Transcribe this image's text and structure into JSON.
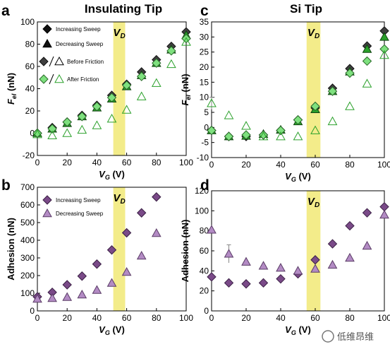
{
  "figure": {
    "titles": {
      "left": "Insulating Tip",
      "right": "Si Tip"
    },
    "watermark": "低维昂维",
    "colors": {
      "green_dark": "#2aa02a",
      "green_light": "#7ee07e",
      "diamond_dark": "#3f3f3f",
      "purple": "#7a4a88",
      "lavender": "#b38bc4",
      "vd_band": "#f3ec8a"
    }
  },
  "chart_data": [
    {
      "panel": "a",
      "type": "scatter",
      "xlabel": "V_G (V)",
      "ylabel": "F_el (nN)",
      "xlim": [
        0,
        100
      ],
      "ylim": [
        -20,
        100
      ],
      "xticks": [
        0,
        20,
        40,
        60,
        80,
        100
      ],
      "yticks": [
        -20,
        0,
        20,
        40,
        60,
        80,
        100
      ],
      "band": {
        "label": "V_D",
        "x0": 51,
        "x1": 59
      },
      "legend": [
        "Increasing Sweep",
        "Decreasing Sweep",
        "Before Friction",
        "After Friction"
      ],
      "series": [
        {
          "name": "Before Friction",
          "marker": "diamond",
          "style": "before",
          "x": [
            0,
            10,
            20,
            30,
            40,
            50,
            60,
            70,
            80,
            90,
            100
          ],
          "y": [
            0,
            5,
            10,
            16,
            25,
            34,
            44,
            55,
            66,
            78,
            91
          ]
        },
        {
          "name": "Before Friction",
          "marker": "triangle",
          "style": "before",
          "x": [
            0,
            10,
            20,
            30,
            40,
            50,
            60,
            70,
            80,
            90,
            100
          ],
          "y": [
            0,
            4,
            9,
            15,
            23,
            31,
            42,
            52,
            63,
            75,
            88
          ]
        },
        {
          "name": "After Friction",
          "marker": "diamond",
          "style": "after",
          "x": [
            0,
            10,
            20,
            30,
            40,
            50,
            60,
            70,
            80,
            90,
            100
          ],
          "y": [
            0,
            4,
            10,
            15,
            24,
            32,
            43,
            51,
            63,
            74,
            85
          ]
        },
        {
          "name": "After Friction",
          "marker": "triangle",
          "style": "after",
          "x": [
            0,
            10,
            20,
            30,
            40,
            50,
            60,
            70,
            80,
            90,
            100
          ],
          "y": [
            -1,
            -2,
            0,
            3,
            7,
            13,
            21,
            33,
            45,
            62,
            82
          ]
        }
      ]
    },
    {
      "panel": "b",
      "type": "scatter",
      "xlabel": "V_G (V)",
      "ylabel": "Adhesion (nN)",
      "xlim": [
        0,
        100
      ],
      "ylim": [
        0,
        700
      ],
      "xticks": [
        0,
        20,
        40,
        60,
        80,
        100
      ],
      "yticks": [
        0,
        100,
        200,
        300,
        400,
        500,
        600,
        700
      ],
      "band": {
        "label": "V_D",
        "x0": 51,
        "x1": 59
      },
      "legend": [
        "Increasing Sweep",
        "Decreasing Sweep"
      ],
      "series": [
        {
          "name": "Increasing Sweep",
          "marker": "diamond",
          "style": "purple",
          "x": [
            0,
            10,
            20,
            30,
            40,
            50,
            60,
            70,
            80
          ],
          "y": [
            80,
            105,
            148,
            197,
            265,
            345,
            442,
            555,
            645
          ]
        },
        {
          "name": "Decreasing Sweep",
          "marker": "triangle",
          "style": "lavender",
          "x": [
            0,
            10,
            20,
            30,
            40,
            50,
            60,
            70,
            80
          ],
          "y": [
            68,
            72,
            78,
            92,
            118,
            158,
            220,
            312,
            440
          ]
        }
      ]
    },
    {
      "panel": "c",
      "type": "scatter",
      "xlabel": "V_G (V)",
      "ylabel": "F_el (nN)",
      "xlim": [
        0,
        100
      ],
      "ylim": [
        -10,
        35
      ],
      "xticks": [
        0,
        20,
        40,
        60,
        80,
        100
      ],
      "yticks": [
        -10,
        -5,
        0,
        5,
        10,
        15,
        20,
        25,
        30,
        35
      ],
      "band": {
        "label": "V_D",
        "x0": 55,
        "x1": 63
      },
      "series": [
        {
          "name": "Before Friction",
          "marker": "diamond",
          "style": "before",
          "x": [
            0,
            10,
            20,
            30,
            40,
            50,
            60,
            70,
            80,
            90,
            100
          ],
          "y": [
            -1,
            -3,
            -3,
            -2.5,
            -1,
            2.5,
            6.5,
            13,
            19.5,
            27,
            32
          ]
        },
        {
          "name": "Before Friction",
          "marker": "triangle",
          "style": "before",
          "x": [
            0,
            10,
            20,
            30,
            40,
            50,
            60,
            70,
            80,
            90,
            100
          ],
          "y": [
            -1,
            -3,
            -2.8,
            -2.2,
            -0.8,
            2,
            6,
            12,
            18.5,
            26,
            30
          ]
        },
        {
          "name": "After Friction",
          "marker": "diamond",
          "style": "after",
          "x": [
            0,
            10,
            20,
            30,
            40,
            50,
            60,
            70,
            80,
            90,
            100
          ],
          "y": [
            -1,
            -3,
            -2.5,
            -2.5,
            -1,
            2.5,
            7,
            12,
            18,
            22,
            26
          ]
        },
        {
          "name": "After Friction",
          "marker": "triangle",
          "style": "after",
          "x": [
            0,
            10,
            20,
            30,
            40,
            50,
            60,
            70,
            80,
            90,
            100
          ],
          "y": [
            8,
            4,
            0.5,
            -3,
            -3,
            -3,
            -1,
            2,
            7,
            14.5,
            24
          ],
          "err": [
            2,
            0,
            0,
            0,
            0,
            0,
            0,
            0,
            0,
            0,
            0
          ]
        }
      ]
    },
    {
      "panel": "d",
      "type": "scatter",
      "xlabel": "V_G (V)",
      "ylabel": "Adhesion (nN)",
      "xlim": [
        0,
        100
      ],
      "ylim": [
        0,
        120
      ],
      "xticks": [
        0,
        20,
        40,
        60,
        80,
        100
      ],
      "yticks": [
        0,
        20,
        40,
        60,
        80,
        100,
        120
      ],
      "band": {
        "label": "V_D",
        "x0": 55,
        "x1": 63
      },
      "series": [
        {
          "name": "Increasing Sweep",
          "marker": "diamond",
          "style": "purple",
          "x": [
            0,
            10,
            20,
            30,
            40,
            50,
            60,
            70,
            80,
            90,
            100
          ],
          "y": [
            34,
            28,
            27,
            28,
            32,
            37,
            51,
            67,
            85,
            98,
            104
          ]
        },
        {
          "name": "Decreasing Sweep",
          "marker": "triangle",
          "style": "lavender",
          "x": [
            0,
            10,
            20,
            30,
            40,
            50,
            60,
            70,
            80,
            90,
            100
          ],
          "y": [
            81,
            57,
            49,
            45,
            43,
            40,
            42,
            46,
            53,
            65,
            96
          ],
          "err": [
            0,
            9,
            0,
            0,
            0,
            0,
            0,
            0,
            0,
            0,
            0
          ]
        }
      ]
    }
  ]
}
